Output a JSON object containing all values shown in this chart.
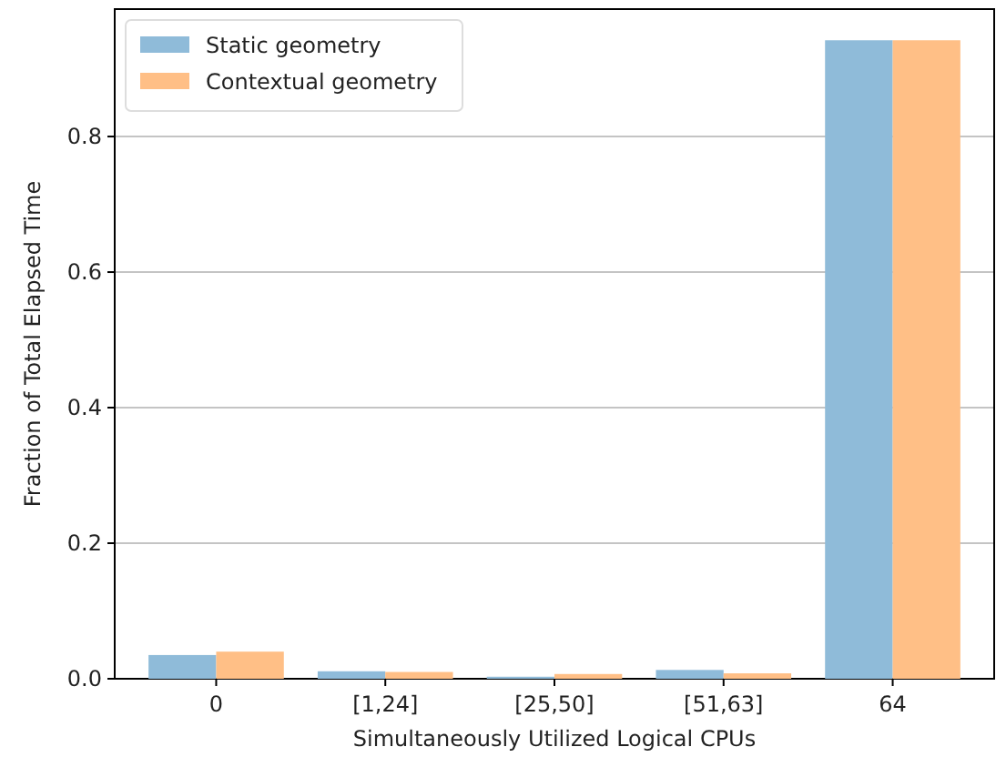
{
  "chart_data": {
    "type": "bar",
    "xlabel": "Simultaneously Utilized Logical CPUs",
    "ylabel": "Fraction of Total Elapsed Time",
    "categories": [
      "0",
      "[1,24]",
      "[25,50]",
      "[51,63]",
      "64"
    ],
    "series": [
      {
        "name": "Static geometry",
        "color": "#8fbbd9",
        "values": [
          0.035,
          0.011,
          0.003,
          0.013,
          0.942
        ]
      },
      {
        "name": "Contextual geometry",
        "color": "#ffbf86",
        "values": [
          0.04,
          0.01,
          0.007,
          0.008,
          0.942
        ]
      }
    ],
    "ylim": [
      0,
      0.988
    ],
    "yticks": [
      {
        "value": 0,
        "label": "0.0"
      },
      {
        "value": 0.2,
        "label": "0.2"
      },
      {
        "value": 0.4,
        "label": "0.4"
      },
      {
        "value": 0.6,
        "label": "0.6"
      },
      {
        "value": 0.8,
        "label": "0.8"
      }
    ],
    "grid": "y",
    "legend": "top left"
  }
}
